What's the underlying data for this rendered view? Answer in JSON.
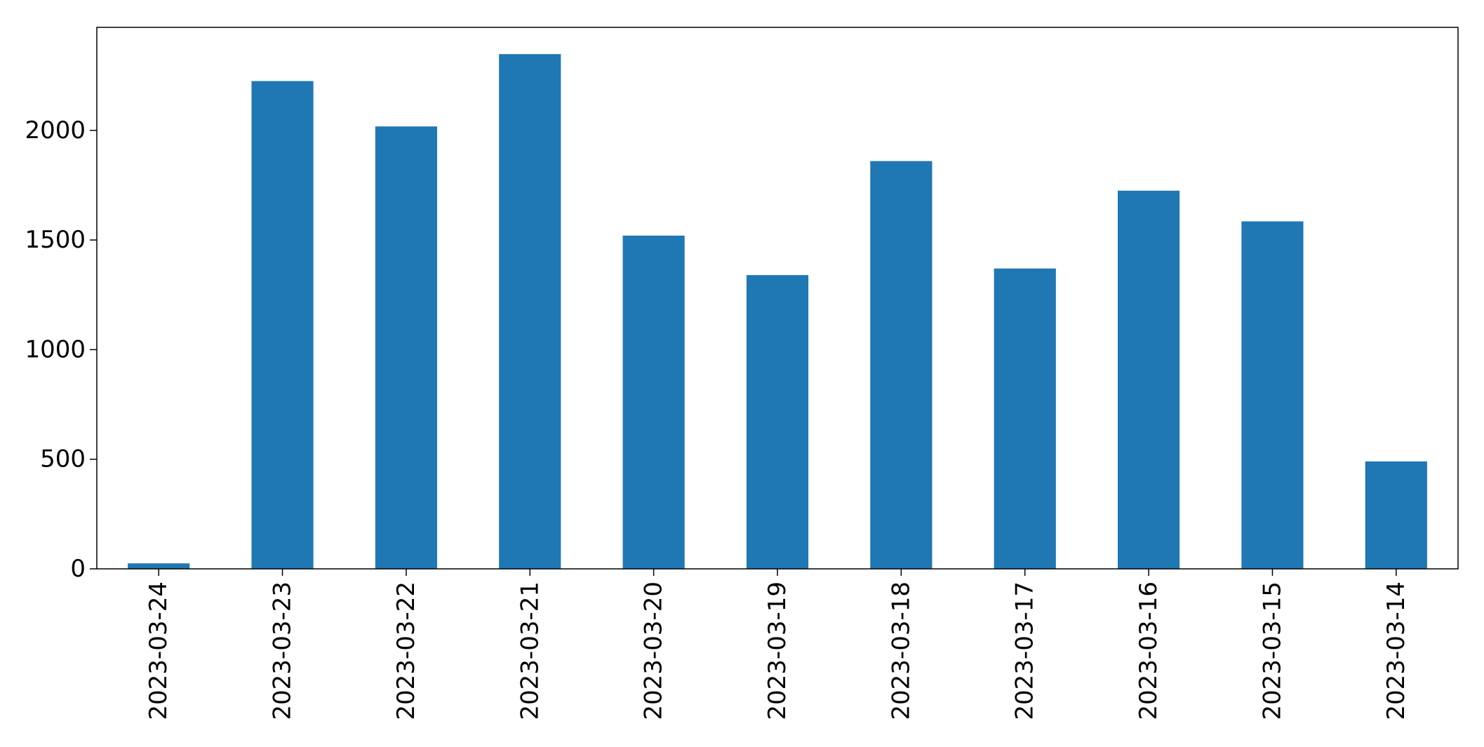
{
  "chart_data": {
    "type": "bar",
    "title": "",
    "xlabel": "",
    "ylabel": "",
    "categories": [
      "2023-03-24",
      "2023-03-23",
      "2023-03-22",
      "2023-03-21",
      "2023-03-20",
      "2023-03-19",
      "2023-03-18",
      "2023-03-17",
      "2023-03-16",
      "2023-03-15",
      "2023-03-14"
    ],
    "values": [
      25,
      2225,
      2018,
      2348,
      1520,
      1340,
      1860,
      1370,
      1725,
      1585,
      490
    ],
    "ylim": [
      0,
      2470
    ],
    "yticks": [
      0,
      500,
      1000,
      1500,
      2000
    ],
    "grid": false,
    "legend": "none",
    "bar_color": "#1f77b4"
  }
}
